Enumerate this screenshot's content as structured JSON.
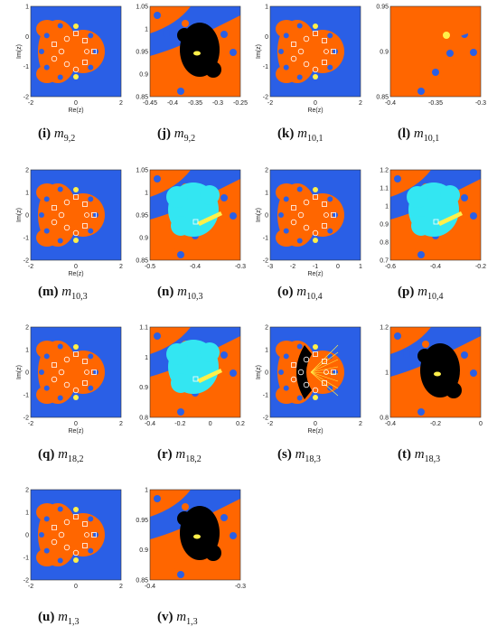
{
  "colors": {
    "blue": "#2a5fe6",
    "orange": "#ff6600",
    "black": "#000000",
    "cyan": "#33e6f2",
    "yellow": "#fff04a"
  },
  "axis_labels": {
    "x": "Re(z)",
    "y": "Im(z)"
  },
  "panels": [
    {
      "id": "i",
      "letter": "(i)",
      "m": "m",
      "sub": "9,2",
      "kind": "full",
      "xticks": [
        "-2",
        "0",
        "2"
      ],
      "yticks": [
        "1",
        "0",
        "-1",
        "-2"
      ],
      "labels": true
    },
    {
      "id": "j",
      "letter": "(j)",
      "m": "m",
      "sub": "9,2",
      "kind": "zoom-black",
      "xticks": [
        "-0.45",
        "-0.4",
        "-0.35",
        "-0.3",
        "-0.25"
      ],
      "yticks": [
        "1.05",
        "1",
        "0.95",
        "0.9",
        "0.85"
      ],
      "labels": false
    },
    {
      "id": "k",
      "letter": "(k)",
      "m": "m",
      "sub": "10,1",
      "kind": "full",
      "xticks": [
        "-2",
        "0",
        "2"
      ],
      "yticks": [
        "1",
        "0",
        "-1",
        "-2"
      ],
      "labels": true
    },
    {
      "id": "l",
      "letter": "(l)",
      "m": "m",
      "sub": "10,1",
      "kind": "zoom-split",
      "xticks": [
        "-0.4",
        "-0.35",
        "-0.3"
      ],
      "yticks": [
        "0.95",
        "0.9",
        "0.85"
      ],
      "labels": false
    },
    {
      "id": "m",
      "letter": "(m)",
      "m": "m",
      "sub": "10,3",
      "kind": "full",
      "xticks": [
        "-2",
        "0",
        "2"
      ],
      "yticks": [
        "2",
        "1",
        "0",
        "-1",
        "-2"
      ],
      "labels": true
    },
    {
      "id": "n",
      "letter": "(n)",
      "m": "m",
      "sub": "10,3",
      "kind": "zoom-cyan",
      "xticks": [
        "-0.5",
        "-0.4",
        "-0.3"
      ],
      "yticks": [
        "1.05",
        "1",
        "0.95",
        "0.9",
        "0.85"
      ],
      "labels": false
    },
    {
      "id": "o",
      "letter": "(o)",
      "m": "m",
      "sub": "10,4",
      "kind": "full",
      "xticks": [
        "-3",
        "-2",
        "-1",
        "0",
        "1"
      ],
      "yticks": [
        "2",
        "1",
        "0",
        "-1",
        "-2"
      ],
      "labels": true
    },
    {
      "id": "p",
      "letter": "(p)",
      "m": "m",
      "sub": "10,4",
      "kind": "zoom-cyan",
      "xticks": [
        "-0.6",
        "-0.4",
        "-0.2"
      ],
      "yticks": [
        "1.2",
        "1.1",
        "1",
        "0.9",
        "0.8",
        "0.7"
      ],
      "labels": false
    },
    {
      "id": "q",
      "letter": "(q)",
      "m": "m",
      "sub": "18,2",
      "kind": "full",
      "xticks": [
        "-2",
        "0",
        "2"
      ],
      "yticks": [
        "2",
        "1",
        "0",
        "-1",
        "-2"
      ],
      "labels": true
    },
    {
      "id": "r",
      "letter": "(r)",
      "m": "m",
      "sub": "18,2",
      "kind": "zoom-cyan",
      "xticks": [
        "-0.4",
        "-0.2",
        "0",
        "0.2"
      ],
      "yticks": [
        "1.1",
        "1",
        "0.9",
        "0.8"
      ],
      "labels": false
    },
    {
      "id": "s",
      "letter": "(s)",
      "m": "m",
      "sub": "18,3",
      "kind": "full-black",
      "xticks": [
        "-2",
        "0",
        "2"
      ],
      "yticks": [
        "2",
        "1",
        "0",
        "-1",
        "-2"
      ],
      "labels": true
    },
    {
      "id": "t",
      "letter": "(t)",
      "m": "m",
      "sub": "18,3",
      "kind": "zoom-black",
      "xticks": [
        "-0.4",
        "-0.2",
        "0"
      ],
      "yticks": [
        "1.2",
        "1",
        "0.8"
      ],
      "labels": false
    },
    {
      "id": "u",
      "letter": "(u)",
      "m": "m",
      "sub": "1,3",
      "kind": "full",
      "xticks": [
        "-2",
        "0",
        "2"
      ],
      "yticks": [
        "2",
        "1",
        "0",
        "-1",
        "-2"
      ],
      "labels": false
    },
    {
      "id": "v",
      "letter": "(v)",
      "m": "m",
      "sub": "1,3",
      "kind": "zoom-black",
      "xticks": [
        "-0.4",
        "-0.3"
      ],
      "yticks": [
        "1",
        "0.95",
        "0.9",
        "0.85"
      ],
      "labels": false
    }
  ]
}
